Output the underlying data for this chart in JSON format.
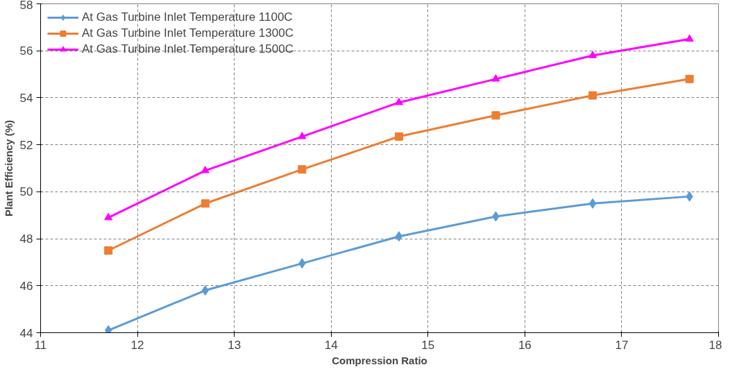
{
  "chart_data": {
    "type": "line",
    "xlabel": "Compression Ratio",
    "ylabel": "Plant Efficiency (%)",
    "x": [
      11.7,
      12.7,
      13.7,
      14.7,
      15.7,
      16.7,
      17.7
    ],
    "series": [
      {
        "name": "At Gas Turbine Inlet Temperature 1100C",
        "color": "#5b9bd5",
        "marker": "diamond",
        "values": [
          44.1,
          45.8,
          46.95,
          48.1,
          48.95,
          49.5,
          49.8
        ]
      },
      {
        "name": "At Gas Turbine Inlet Temperature 1300C",
        "color": "#ed7d31",
        "marker": "square",
        "values": [
          47.5,
          49.5,
          50.95,
          52.35,
          53.25,
          54.1,
          54.8
        ]
      },
      {
        "name": "At Gas Turbine Inlet Temperature 1500C",
        "color": "#ff00ff",
        "marker": "triangle",
        "values": [
          48.9,
          50.9,
          52.35,
          53.8,
          54.8,
          55.8,
          56.5
        ]
      }
    ],
    "xlim": [
      11,
      18
    ],
    "xticks": [
      11,
      12,
      13,
      14,
      15,
      16,
      17,
      18
    ],
    "ylim": [
      44,
      58
    ],
    "yticks": [
      44,
      46,
      48,
      50,
      52,
      54,
      56,
      58
    ],
    "grid": true,
    "legend": "top left",
    "line_style": "solid"
  }
}
